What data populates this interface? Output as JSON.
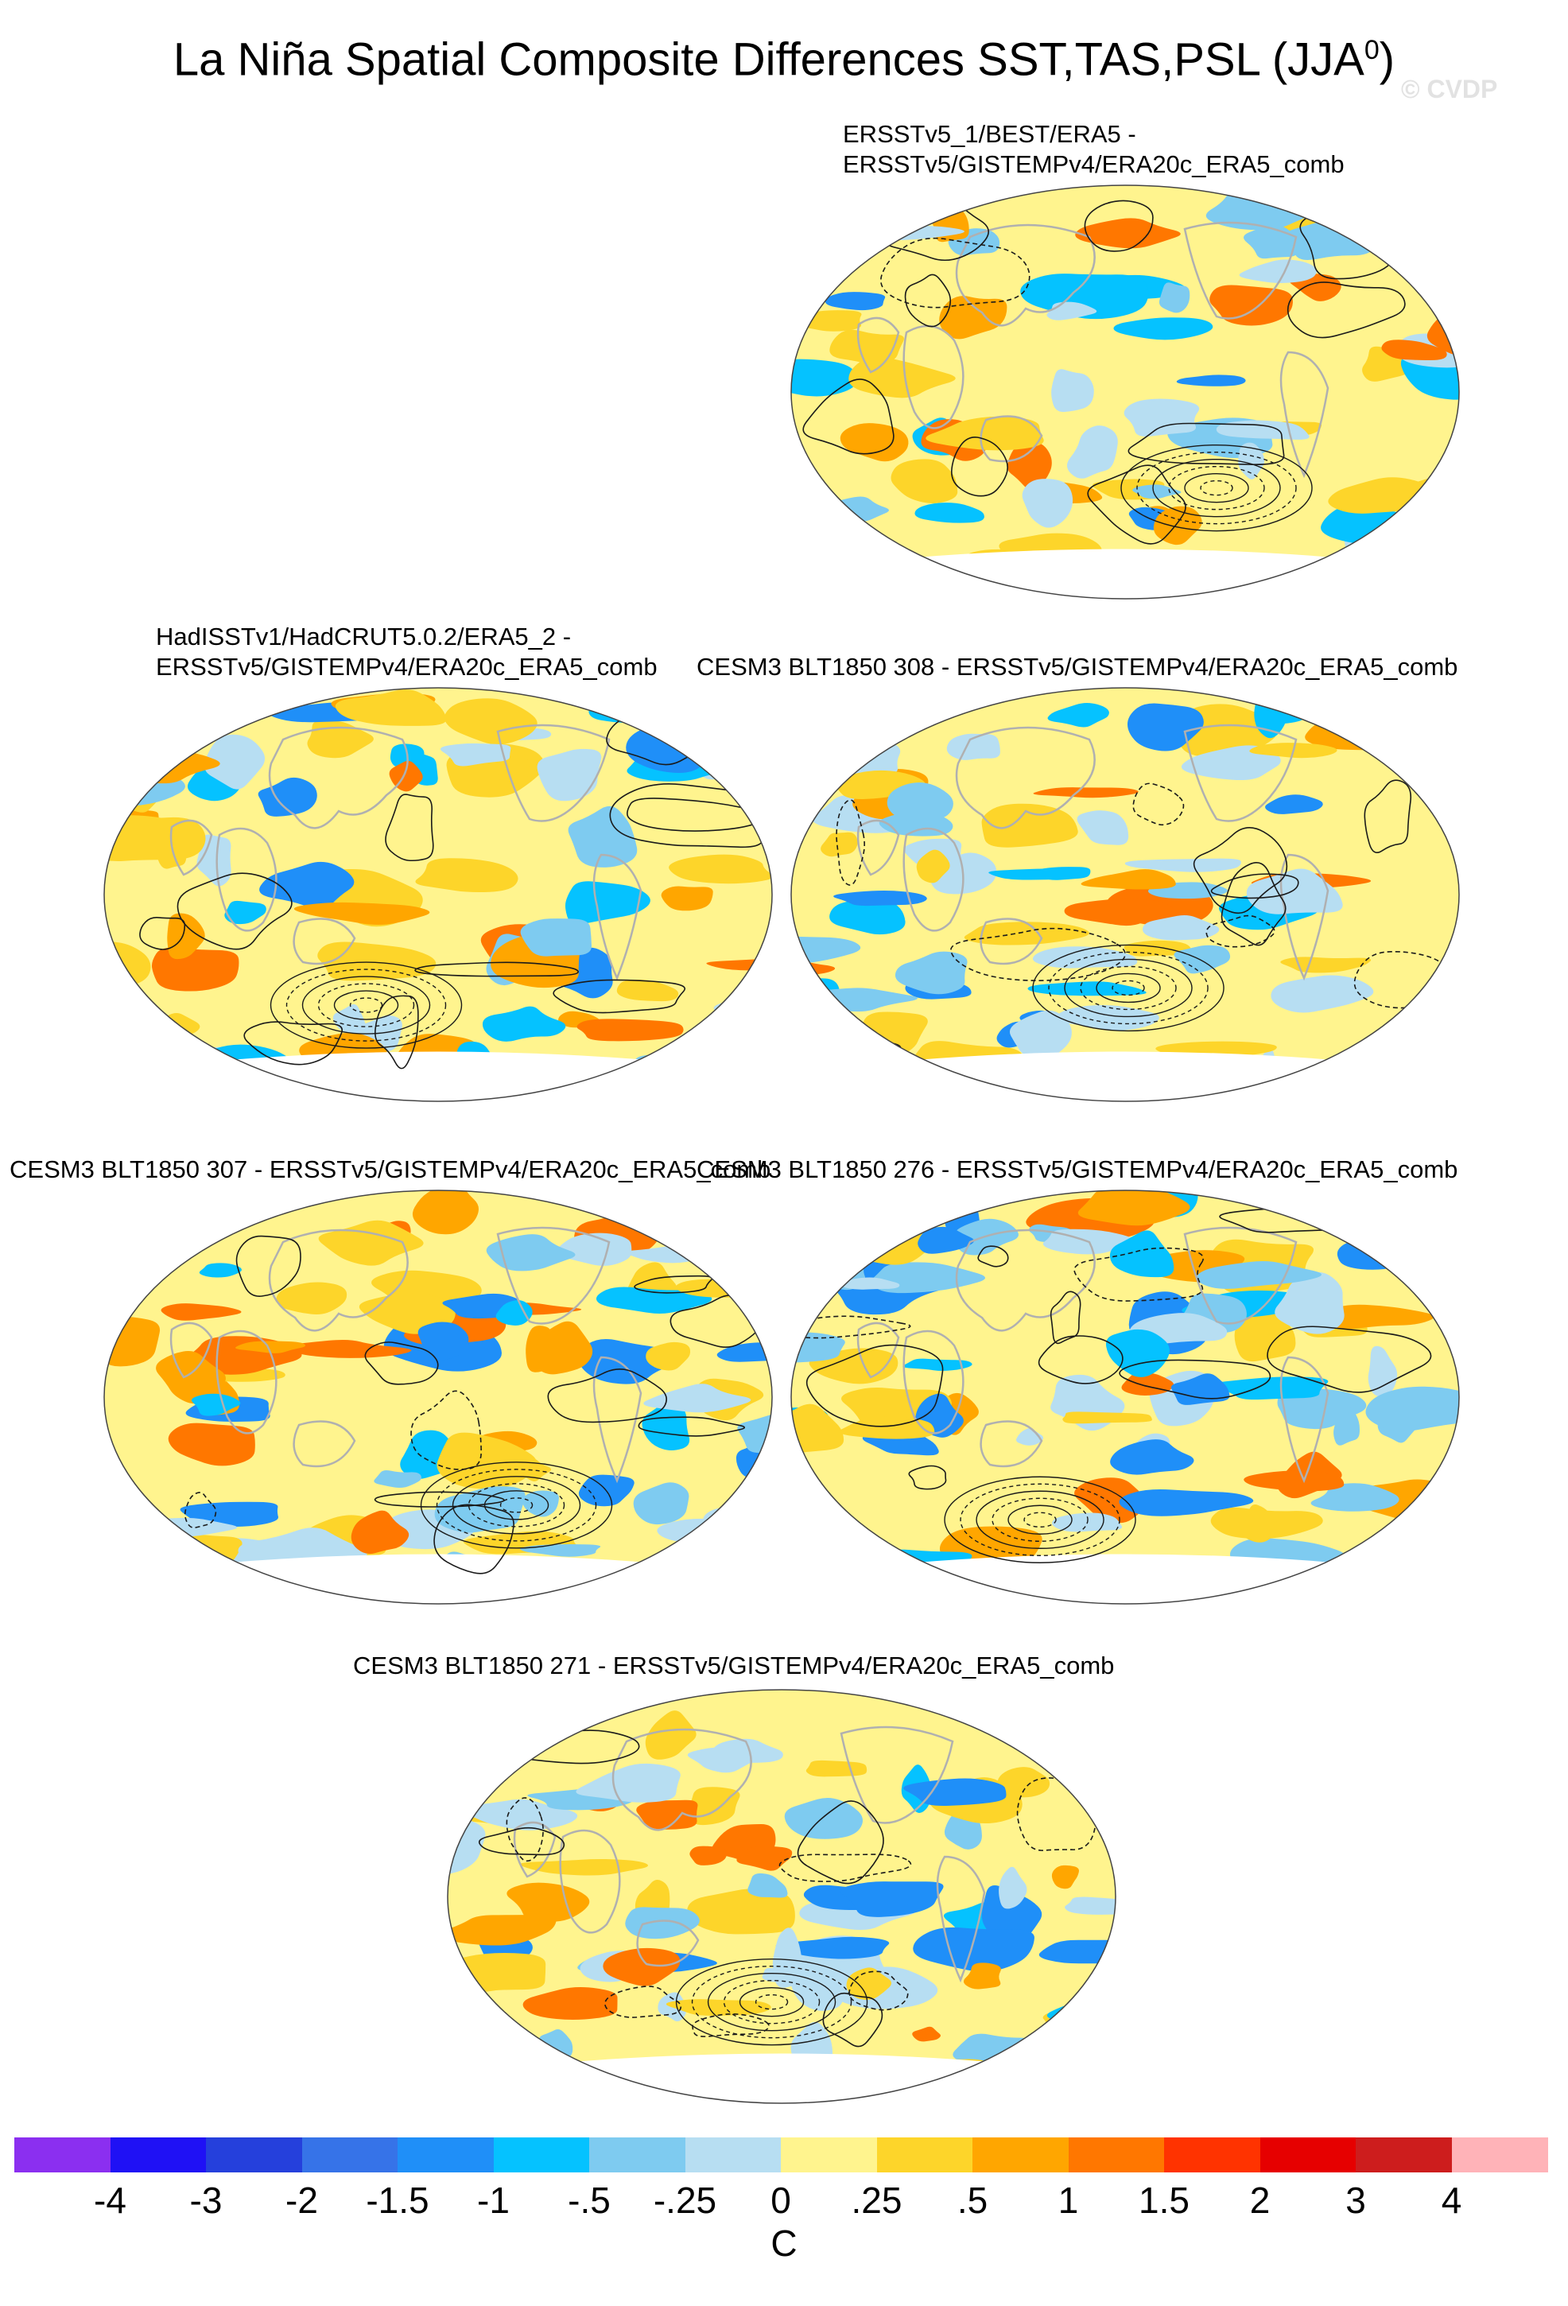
{
  "figure": {
    "title": "La Niña Spatial Composite Differences SST,TAS,PSL (JJA",
    "title_sup": "0",
    "title_close": ")",
    "watermark": "© CVDP"
  },
  "panels": [
    {
      "label_line1": "ERSSTv5_1/BEST/ERA5 -",
      "label_line2": "ERSSTv5/GISTEMPv4/ERA20c_ERA5_comb"
    },
    {
      "label_line1": "HadISSTv1/HadCRUT5.0.2/ERA5_2 -",
      "label_line2": "ERSSTv5/GISTEMPv4/ERA20c_ERA5_comb"
    },
    {
      "label_line1": "CESM3 BLT1850 308 - ERSSTv5/GISTEMPv4/ERA20c_ERA5_comb",
      "label_line2": ""
    },
    {
      "label_line1": "CESM3 BLT1850 307 - ERSSTv5/GISTEMPv4/ERA20c_ERA5_comb",
      "label_line2": ""
    },
    {
      "label_line1": "CESM3 BLT1850 276 - ERSSTv5/GISTEMPv4/ERA20c_ERA5_comb",
      "label_line2": ""
    },
    {
      "label_line1": "CESM3 BLT1850 271 - ERSSTv5/GISTEMPv4/ERA20c_ERA5_comb",
      "label_line2": ""
    }
  ],
  "colorbar": {
    "ticks": [
      "-4",
      "-3",
      "-2",
      "-1.5",
      "-1",
      "-.5",
      "-.25",
      "0",
      ".25",
      ".5",
      "1",
      "1.5",
      "2",
      "3",
      "4"
    ],
    "colors": [
      "#8b2ff0",
      "#1f11f5",
      "#2540dc",
      "#3673e8",
      "#1f8ff8",
      "#05c2ff",
      "#7ecbf0",
      "#b7def2",
      "#fff48e",
      "#fdd52a",
      "#ffa600",
      "#ff7700",
      "#ff3300",
      "#e60000",
      "#cd1d1d",
      "#ffb3b8"
    ],
    "unit": "C"
  }
}
